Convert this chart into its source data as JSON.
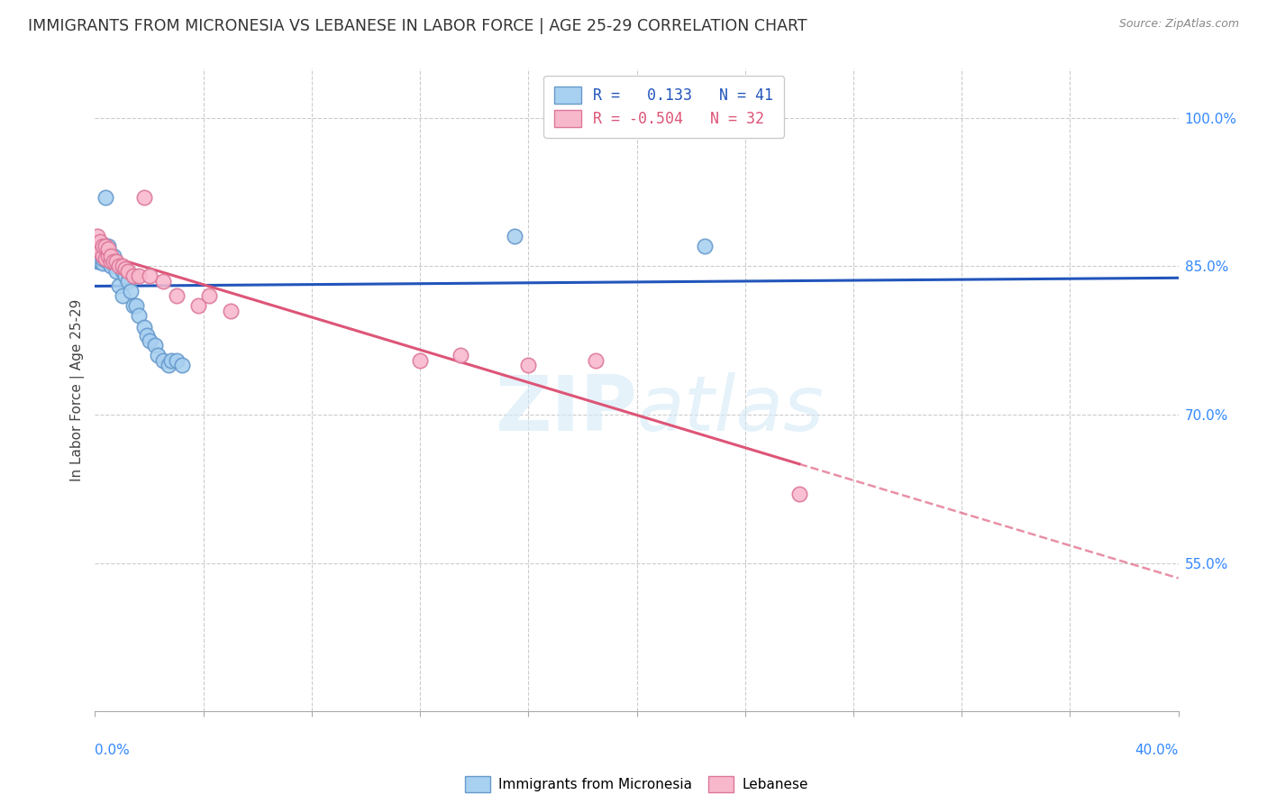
{
  "title": "IMMIGRANTS FROM MICRONESIA VS LEBANESE IN LABOR FORCE | AGE 25-29 CORRELATION CHART",
  "source": "Source: ZipAtlas.com",
  "ylabel": "In Labor Force | Age 25-29",
  "right_yticks": [
    1.0,
    0.85,
    0.7,
    0.55
  ],
  "right_yticklabels": [
    "100.0%",
    "85.0%",
    "70.0%",
    "55.0%"
  ],
  "xlim": [
    0.0,
    0.4
  ],
  "ylim": [
    0.4,
    1.05
  ],
  "legend_r1": "R =   0.133   N = 41",
  "legend_r2": "R = -0.504   N = 32",
  "micronesia_color": "#a8d0f0",
  "lebanese_color": "#f8b8cc",
  "micronesia_edge": "#6699cc",
  "lebanese_edge": "#dd7799",
  "trend_blue": "#2255bb",
  "trend_pink": "#dd5577",
  "watermark_color": "#d4eaf8",
  "micronesia_x": [
    0.001,
    0.001,
    0.002,
    0.002,
    0.002,
    0.003,
    0.003,
    0.003,
    0.003,
    0.004,
    0.004,
    0.004,
    0.005,
    0.005,
    0.005,
    0.006,
    0.006,
    0.007,
    0.007,
    0.008,
    0.009,
    0.01,
    0.01,
    0.011,
    0.012,
    0.013,
    0.014,
    0.015,
    0.016,
    0.018,
    0.019,
    0.02,
    0.022,
    0.023,
    0.025,
    0.027,
    0.028,
    0.03,
    0.032,
    0.155,
    0.225
  ],
  "micronesia_y": [
    0.855,
    0.86,
    0.855,
    0.865,
    0.87,
    0.853,
    0.858,
    0.862,
    0.872,
    0.862,
    0.92,
    0.858,
    0.855,
    0.86,
    0.87,
    0.85,
    0.855,
    0.855,
    0.86,
    0.845,
    0.83,
    0.82,
    0.845,
    0.84,
    0.835,
    0.825,
    0.81,
    0.81,
    0.8,
    0.788,
    0.78,
    0.775,
    0.77,
    0.76,
    0.755,
    0.75,
    0.755,
    0.755,
    0.75,
    0.88,
    0.87
  ],
  "lebanese_x": [
    0.001,
    0.001,
    0.002,
    0.002,
    0.003,
    0.003,
    0.004,
    0.004,
    0.005,
    0.005,
    0.006,
    0.006,
    0.007,
    0.008,
    0.009,
    0.01,
    0.011,
    0.012,
    0.014,
    0.016,
    0.018,
    0.02,
    0.025,
    0.03,
    0.038,
    0.042,
    0.05,
    0.12,
    0.135,
    0.16,
    0.185,
    0.26
  ],
  "lebanese_y": [
    0.87,
    0.88,
    0.865,
    0.875,
    0.86,
    0.87,
    0.858,
    0.87,
    0.86,
    0.868,
    0.855,
    0.86,
    0.855,
    0.855,
    0.85,
    0.85,
    0.848,
    0.845,
    0.84,
    0.84,
    0.92,
    0.84,
    0.835,
    0.82,
    0.81,
    0.82,
    0.805,
    0.755,
    0.76,
    0.75,
    0.755,
    0.62
  ],
  "leb_trend_solid_end": 0.26,
  "n_xticks": 10
}
